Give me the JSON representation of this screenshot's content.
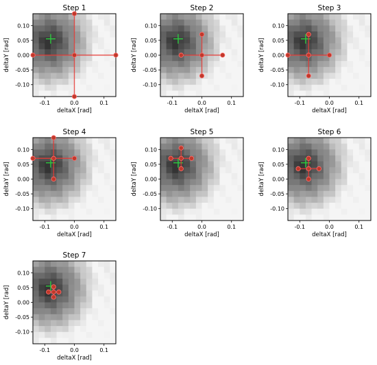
{
  "figure": {
    "panel_titles": [
      "Step 1",
      "Step 2",
      "Step 3",
      "Step 4",
      "Step 5",
      "Step 6",
      "Step 7"
    ],
    "xlabel": "deltaX [rad]",
    "ylabel": "deltaY [rad]",
    "colors": {
      "markers": "#c0392b",
      "search_lines": "#e53935",
      "reference_cross": "#2ecc40",
      "background": "#ffffff"
    }
  },
  "chart_data": [
    {
      "type": "heatmap",
      "title": "Step 1",
      "xlabel": "deltaX [rad]",
      "ylabel": "deltaY [rad]",
      "xlim": [
        -0.14,
        0.14
      ],
      "ylim": [
        -0.14,
        0.14
      ],
      "xticks": [
        "-0.1",
        "0.0",
        "0.1"
      ],
      "yticks": [
        "0.10",
        "0.05",
        "0.00",
        "-0.05",
        "-0.10"
      ],
      "reference_point": [
        -0.08,
        0.055
      ],
      "search_points": [
        [
          0.0,
          0.0
        ],
        [
          0.0,
          0.14
        ],
        [
          0.0,
          -0.14
        ],
        [
          0.14,
          0.0
        ],
        [
          -0.14,
          0.0
        ]
      ]
    },
    {
      "type": "heatmap",
      "title": "Step 2",
      "xlabel": "deltaX [rad]",
      "ylabel": "deltaY [rad]",
      "xlim": [
        -0.14,
        0.14
      ],
      "ylim": [
        -0.14,
        0.14
      ],
      "xticks": [
        "-0.1",
        "0.0",
        "0.1"
      ],
      "yticks": [
        "0.10",
        "0.05",
        "0.00",
        "-0.05",
        "-0.10"
      ],
      "reference_point": [
        -0.08,
        0.055
      ],
      "search_points": [
        [
          0.0,
          0.0
        ],
        [
          0.0,
          0.07
        ],
        [
          0.0,
          -0.07
        ],
        [
          0.07,
          0.0
        ],
        [
          -0.07,
          0.0
        ]
      ]
    },
    {
      "type": "heatmap",
      "title": "Step 3",
      "xlabel": "deltaX [rad]",
      "ylabel": "deltaY [rad]",
      "xlim": [
        -0.14,
        0.14
      ],
      "ylim": [
        -0.14,
        0.14
      ],
      "xticks": [
        "-0.1",
        "0.0",
        "0.1"
      ],
      "yticks": [
        "0.10",
        "0.05",
        "0.00",
        "-0.05",
        "-0.10"
      ],
      "reference_point": [
        -0.08,
        0.055
      ],
      "search_points": [
        [
          -0.07,
          0.0
        ],
        [
          -0.07,
          0.07
        ],
        [
          -0.07,
          -0.07
        ],
        [
          0.0,
          0.0
        ],
        [
          -0.14,
          0.0
        ]
      ]
    },
    {
      "type": "heatmap",
      "title": "Step 4",
      "xlabel": "deltaX [rad]",
      "ylabel": "deltaY [rad]",
      "xlim": [
        -0.14,
        0.14
      ],
      "ylim": [
        -0.14,
        0.14
      ],
      "xticks": [
        "-0.1",
        "0.0",
        "0.1"
      ],
      "yticks": [
        "0.10",
        "0.05",
        "0.00",
        "-0.05",
        "-0.10"
      ],
      "reference_point": [
        -0.08,
        0.055
      ],
      "search_points": [
        [
          -0.07,
          0.07
        ],
        [
          -0.07,
          0.14
        ],
        [
          -0.07,
          0.0
        ],
        [
          0.0,
          0.07
        ],
        [
          -0.14,
          0.07
        ]
      ]
    },
    {
      "type": "heatmap",
      "title": "Step 5",
      "xlabel": "deltaX [rad]",
      "ylabel": "deltaY [rad]",
      "xlim": [
        -0.14,
        0.14
      ],
      "ylim": [
        -0.14,
        0.14
      ],
      "xticks": [
        "-0.1",
        "0.0",
        "0.1"
      ],
      "yticks": [
        "0.10",
        "0.05",
        "0.00",
        "-0.05",
        "-0.10"
      ],
      "reference_point": [
        -0.08,
        0.055
      ],
      "search_points": [
        [
          -0.07,
          0.07
        ],
        [
          -0.07,
          0.105
        ],
        [
          -0.07,
          0.035
        ],
        [
          -0.035,
          0.07
        ],
        [
          -0.105,
          0.07
        ]
      ]
    },
    {
      "type": "heatmap",
      "title": "Step 6",
      "xlabel": "deltaX [rad]",
      "ylabel": "deltaY [rad]",
      "xlim": [
        -0.14,
        0.14
      ],
      "ylim": [
        -0.14,
        0.14
      ],
      "xticks": [
        "-0.1",
        "0.0",
        "0.1"
      ],
      "yticks": [
        "0.10",
        "0.05",
        "0.00",
        "-0.05",
        "-0.10"
      ],
      "reference_point": [
        -0.08,
        0.055
      ],
      "search_points": [
        [
          -0.07,
          0.035
        ],
        [
          -0.07,
          0.07
        ],
        [
          -0.07,
          0.0
        ],
        [
          -0.035,
          0.035
        ],
        [
          -0.105,
          0.035
        ]
      ]
    },
    {
      "type": "heatmap",
      "title": "Step 7",
      "xlabel": "deltaX [rad]",
      "ylabel": "deltaY [rad]",
      "xlim": [
        -0.14,
        0.14
      ],
      "ylim": [
        -0.14,
        0.14
      ],
      "xticks": [
        "-0.1",
        "0.0",
        "0.1"
      ],
      "yticks": [
        "0.10",
        "0.05",
        "0.00",
        "-0.05",
        "-0.10"
      ],
      "reference_point": [
        -0.08,
        0.055
      ],
      "search_points": [
        [
          -0.07,
          0.035
        ],
        [
          -0.07,
          0.0525
        ],
        [
          -0.07,
          0.0175
        ],
        [
          -0.0525,
          0.035
        ],
        [
          -0.0875,
          0.035
        ]
      ]
    }
  ]
}
